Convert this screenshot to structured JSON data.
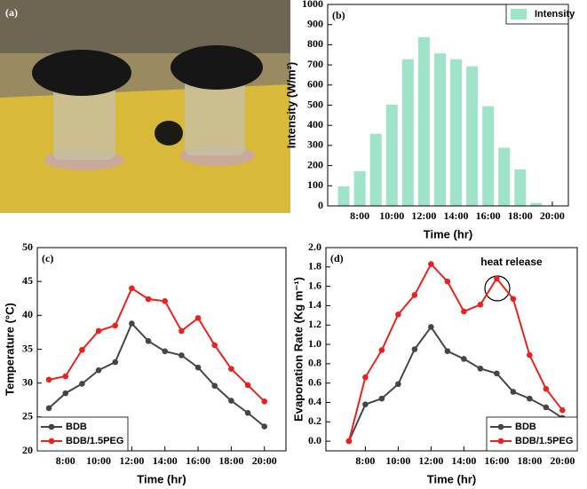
{
  "photo": {
    "panel_label": "(a)"
  },
  "chart_data": [
    {
      "type": "bar",
      "panel_label": "(b)",
      "xlabel": "Time (hr)",
      "ylabel": "Intensity (W/m²)",
      "x": [
        7,
        8,
        9,
        10,
        11,
        12,
        13,
        14,
        15,
        16,
        17,
        18,
        19,
        20
      ],
      "series": [
        {
          "name": "Intensity",
          "color": "#9fe3c9",
          "values": [
            97,
            172,
            358,
            503,
            728,
            838,
            757,
            728,
            693,
            495,
            289,
            181,
            15,
            0
          ]
        }
      ],
      "xlim": [
        6,
        21
      ],
      "xticks": [
        {
          "value": 8,
          "label": "8:00"
        },
        {
          "value": 10,
          "label": "10:00"
        },
        {
          "value": 12,
          "label": "12:00"
        },
        {
          "value": 14,
          "label": "14:00"
        },
        {
          "value": 16,
          "label": "16:00"
        },
        {
          "value": 18,
          "label": "18:00"
        },
        {
          "value": 20,
          "label": "20:00"
        }
      ],
      "ylim": [
        0,
        1000
      ],
      "yticks": [
        0,
        100,
        200,
        300,
        400,
        500,
        600,
        700,
        800,
        900,
        1000
      ],
      "legend": "upper right",
      "grid": false
    },
    {
      "type": "line",
      "panel_label": "(c)",
      "xlabel": "Time (hr)",
      "ylabel": "Temperature (°C)",
      "x": [
        7,
        8,
        9,
        10,
        11,
        12,
        13,
        14,
        15,
        16,
        17,
        18,
        19,
        20
      ],
      "series": [
        {
          "name": "BDB",
          "color": "#454545",
          "values": [
            26.3,
            28.5,
            29.9,
            31.9,
            33.1,
            38.8,
            36.2,
            34.7,
            34.1,
            32.3,
            29.6,
            27.4,
            25.6,
            23.6
          ]
        },
        {
          "name": "BDB/1.5PEG",
          "color": "#e8231f",
          "values": [
            30.5,
            31.0,
            34.9,
            37.7,
            38.5,
            44.0,
            42.4,
            42.1,
            37.7,
            39.6,
            35.6,
            32.1,
            29.7,
            27.3
          ]
        }
      ],
      "xlim": [
        6.3,
        21.3
      ],
      "xticks": [
        {
          "value": 8,
          "label": "8:00"
        },
        {
          "value": 10,
          "label": "10:00"
        },
        {
          "value": 12,
          "label": "12:00"
        },
        {
          "value": 14,
          "label": "14:00"
        },
        {
          "value": 16,
          "label": "16:00"
        },
        {
          "value": 18,
          "label": "18:00"
        },
        {
          "value": 20,
          "label": "20:00"
        }
      ],
      "ylim": [
        20,
        50
      ],
      "yticks": [
        20,
        25,
        30,
        35,
        40,
        45,
        50
      ],
      "legend": "lower left",
      "grid": false
    },
    {
      "type": "line",
      "panel_label": "(d)",
      "xlabel": "Time (hr)",
      "ylabel": "Evaporation Rate (Kg m⁻¹)",
      "annotation": "heat release",
      "x": [
        7,
        8,
        9,
        10,
        11,
        12,
        13,
        14,
        15,
        16,
        17,
        18,
        19,
        20
      ],
      "series": [
        {
          "name": "BDB",
          "color": "#454545",
          "values": [
            0.0,
            0.38,
            0.44,
            0.59,
            0.95,
            1.18,
            0.93,
            0.85,
            0.75,
            0.7,
            0.51,
            0.44,
            0.35,
            0.24
          ]
        },
        {
          "name": "BDB/1.5PEG",
          "color": "#e8231f",
          "values": [
            0.0,
            0.66,
            0.94,
            1.31,
            1.51,
            1.83,
            1.65,
            1.34,
            1.41,
            1.68,
            1.47,
            0.89,
            0.54,
            0.32
          ]
        }
      ],
      "xlim": [
        5.6,
        20.9
      ],
      "xticks": [
        {
          "value": 8,
          "label": "8:00"
        },
        {
          "value": 10,
          "label": "10:00"
        },
        {
          "value": 12,
          "label": "12:00"
        },
        {
          "value": 14,
          "label": "14:00"
        },
        {
          "value": 16,
          "label": "16:00"
        },
        {
          "value": 18,
          "label": "18:00"
        },
        {
          "value": 20,
          "label": "20:00"
        }
      ],
      "ylim": [
        -0.1,
        2.0
      ],
      "yticks": [
        {
          "value": 0,
          "label": "0.0"
        },
        {
          "value": 0.2,
          "label": "0.2"
        },
        {
          "value": 0.4,
          "label": "0.4"
        },
        {
          "value": 0.6,
          "label": "0.6"
        },
        {
          "value": 0.8,
          "label": "0.8"
        },
        {
          "value": 1.0,
          "label": "1.0"
        },
        {
          "value": 1.2,
          "label": "1.2"
        },
        {
          "value": 1.4,
          "label": "1.4"
        },
        {
          "value": 1.6,
          "label": "1.6"
        },
        {
          "value": 1.8,
          "label": "1.8"
        },
        {
          "value": 2.0,
          "label": "2.0"
        }
      ],
      "legend": "lower right",
      "grid": false
    }
  ]
}
